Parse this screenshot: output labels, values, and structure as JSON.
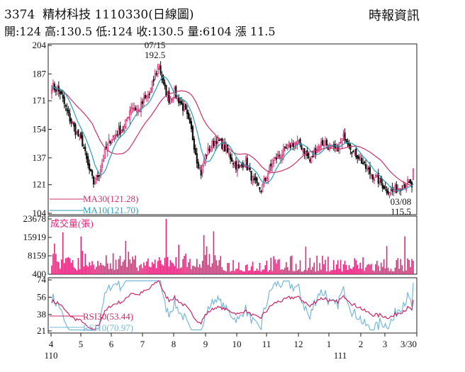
{
  "header": {
    "code": "3374",
    "name": "精材科技",
    "date": "1110330",
    "chart_kind": "(日線圖)",
    "quote": "開:124 高:130.5 低:124 收:130.5 量:6104 漲 11.5",
    "source": "時報資訊"
  },
  "colors": {
    "candle_up": "#d6246e",
    "candle_down": "#111111",
    "ma30": "#cc3366",
    "ma10": "#2a9db8",
    "volume": "#e0267a",
    "rsi30": "#c8286a",
    "rsi10": "#78b8d8"
  },
  "chart_data": [
    {
      "type": "candlestick",
      "panel": "price",
      "y_ticks": [
        "204",
        "187",
        "171",
        "154",
        "137",
        "121",
        "104"
      ],
      "ylim": [
        104,
        204
      ],
      "x_months": [
        "4",
        "5",
        "6",
        "7",
        "8",
        "9",
        "10",
        "11",
        "12",
        "1",
        "2",
        "3",
        "3/30"
      ],
      "x_years": [
        "110",
        "111"
      ],
      "annotations": [
        {
          "date": "07/15",
          "value": "192.5"
        },
        {
          "date": "03/08",
          "value": "115.5"
        }
      ],
      "series": [
        {
          "name": "MA30",
          "label": "MA30(121.28)",
          "last": 121.28
        },
        {
          "name": "MA10",
          "label": "MA10(121.70)",
          "last": 121.7
        }
      ],
      "last_candle": {
        "open": 124,
        "high": 130.5,
        "low": 124,
        "close": 130.5
      },
      "anchors": [
        [
          0,
          180
        ],
        [
          6,
          176
        ],
        [
          12,
          162
        ],
        [
          17,
          153
        ],
        [
          22,
          146
        ],
        [
          26,
          132
        ],
        [
          30,
          122
        ],
        [
          34,
          128
        ],
        [
          38,
          140
        ],
        [
          42,
          148
        ],
        [
          47,
          152
        ],
        [
          52,
          155
        ],
        [
          57,
          168
        ],
        [
          62,
          165
        ],
        [
          66,
          171
        ],
        [
          70,
          175
        ],
        [
          74,
          186
        ],
        [
          77,
          192
        ],
        [
          80,
          180
        ],
        [
          84,
          172
        ],
        [
          88,
          176
        ],
        [
          92,
          170
        ],
        [
          96,
          164
        ],
        [
          100,
          153
        ],
        [
          104,
          136
        ],
        [
          107,
          128
        ],
        [
          110,
          138
        ],
        [
          114,
          144
        ],
        [
          118,
          148
        ],
        [
          122,
          145
        ],
        [
          126,
          140
        ],
        [
          130,
          135
        ],
        [
          134,
          130
        ],
        [
          138,
          135
        ],
        [
          141,
          130
        ],
        [
          144,
          124
        ],
        [
          147,
          120
        ],
        [
          150,
          118
        ],
        [
          154,
          126
        ],
        [
          158,
          134
        ],
        [
          162,
          138
        ],
        [
          166,
          140
        ],
        [
          170,
          144
        ],
        [
          174,
          146
        ],
        [
          178,
          145
        ],
        [
          182,
          140
        ],
        [
          185,
          135
        ],
        [
          188,
          140
        ],
        [
          192,
          145
        ],
        [
          196,
          146
        ],
        [
          200,
          142
        ],
        [
          204,
          142
        ],
        [
          207,
          146
        ],
        [
          210,
          150
        ],
        [
          213,
          146
        ],
        [
          216,
          140
        ],
        [
          220,
          138
        ],
        [
          224,
          132
        ],
        [
          228,
          128
        ],
        [
          232,
          125
        ],
        [
          236,
          122
        ],
        [
          240,
          118
        ],
        [
          244,
          117
        ],
        [
          248,
          119
        ],
        [
          252,
          121
        ],
        [
          255,
          122
        ],
        [
          258,
          120
        ]
      ]
    },
    {
      "type": "bar",
      "panel": "volume",
      "title": "成交量(張)",
      "y_ticks": [
        "23678",
        "15919",
        "8159",
        "400"
      ],
      "ylim": [
        400,
        23678
      ],
      "last": 6104
    },
    {
      "type": "line",
      "panel": "rsi",
      "y_ticks": [
        "74",
        "56",
        "38",
        "21"
      ],
      "ylim": [
        21,
        74
      ],
      "series": [
        {
          "name": "RSI30",
          "label": "RSI30(53.44)",
          "last": 53.44
        },
        {
          "name": "RSI10",
          "label": "RSI10(70.97)",
          "last": 70.97
        }
      ]
    }
  ]
}
